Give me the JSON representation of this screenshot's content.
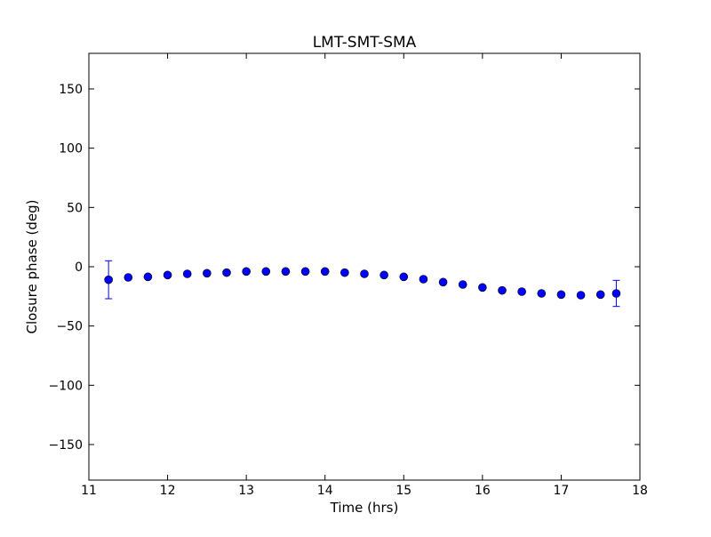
{
  "chart_data": {
    "type": "scatter",
    "title": "LMT-SMT-SMA",
    "xlabel": "Time (hrs)",
    "ylabel": "Closure phase (deg)",
    "xlim": [
      11,
      18
    ],
    "ylim": [
      -180,
      180
    ],
    "x_ticks": [
      11,
      12,
      13,
      14,
      15,
      16,
      17,
      18
    ],
    "y_ticks": [
      150,
      100,
      50,
      0,
      -50,
      -100,
      -150
    ],
    "x_tick_labels": [
      "11",
      "12",
      "13",
      "14",
      "15",
      "16",
      "17",
      "18"
    ],
    "y_tick_labels": [
      "150",
      "100",
      "50",
      "0",
      "−50",
      "−100",
      "−150"
    ],
    "grid": false,
    "marker_color": "#0000ff",
    "errorbar_color": "#0000ff",
    "series": [
      {
        "points": [
          {
            "x": 11.25,
            "y": -11,
            "err": 16
          },
          {
            "x": 11.5,
            "y": -9
          },
          {
            "x": 11.75,
            "y": -8.5
          },
          {
            "x": 12.0,
            "y": -7
          },
          {
            "x": 12.25,
            "y": -6
          },
          {
            "x": 12.5,
            "y": -5.5
          },
          {
            "x": 12.75,
            "y": -5
          },
          {
            "x": 13.0,
            "y": -4
          },
          {
            "x": 13.25,
            "y": -4
          },
          {
            "x": 13.5,
            "y": -4
          },
          {
            "x": 13.75,
            "y": -4
          },
          {
            "x": 14.0,
            "y": -4
          },
          {
            "x": 14.25,
            "y": -5
          },
          {
            "x": 14.5,
            "y": -6
          },
          {
            "x": 14.75,
            "y": -7
          },
          {
            "x": 15.0,
            "y": -8.5
          },
          {
            "x": 15.25,
            "y": -10.5
          },
          {
            "x": 15.5,
            "y": -13
          },
          {
            "x": 15.75,
            "y": -15
          },
          {
            "x": 16.0,
            "y": -17.5
          },
          {
            "x": 16.25,
            "y": -20
          },
          {
            "x": 16.5,
            "y": -21
          },
          {
            "x": 16.75,
            "y": -22.5
          },
          {
            "x": 17.0,
            "y": -23.5
          },
          {
            "x": 17.25,
            "y": -24
          },
          {
            "x": 17.5,
            "y": -23.5
          },
          {
            "x": 17.7,
            "y": -22.5,
            "err": 11
          }
        ]
      }
    ]
  }
}
